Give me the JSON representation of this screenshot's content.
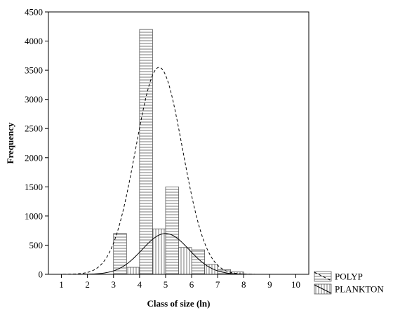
{
  "chart_data": {
    "type": "bar",
    "xlabel": "Class of size (ln)",
    "ylabel": "Frequency",
    "xlim": [
      0.5,
      10.5
    ],
    "ylim": [
      0,
      4500
    ],
    "x_ticks": [
      1,
      2,
      3,
      4,
      5,
      6,
      7,
      8,
      9,
      10
    ],
    "y_ticks": [
      0,
      500,
      1000,
      1500,
      2000,
      2500,
      3000,
      3500,
      4000,
      4500
    ],
    "grid": false,
    "legend_position": "bottom-right, outside plot",
    "bin_width": 0.5,
    "series": [
      {
        "name": "POLYP",
        "pattern": "horizontal-hatch",
        "bars": [
          {
            "x": 3.25,
            "y": 700
          },
          {
            "x": 4.25,
            "y": 4200
          },
          {
            "x": 5.25,
            "y": 1500
          },
          {
            "x": 6.25,
            "y": 420
          },
          {
            "x": 7.25,
            "y": 80
          },
          {
            "x": 7.75,
            "y": 30
          }
        ],
        "fit": {
          "curve": "normal",
          "style": "dashed",
          "peak_x": 4.75,
          "peak_y": 3550,
          "sd": 0.9
        }
      },
      {
        "name": "PLANKTON",
        "pattern": "vertical-hatch",
        "bars": [
          {
            "x": 3.75,
            "y": 120
          },
          {
            "x": 4.75,
            "y": 780
          },
          {
            "x": 5.75,
            "y": 460
          },
          {
            "x": 6.75,
            "y": 170
          },
          {
            "x": 7.75,
            "y": 40
          }
        ],
        "fit": {
          "curve": "normal",
          "style": "solid",
          "peak_x": 5.0,
          "peak_y": 700,
          "sd": 0.9
        }
      }
    ]
  }
}
